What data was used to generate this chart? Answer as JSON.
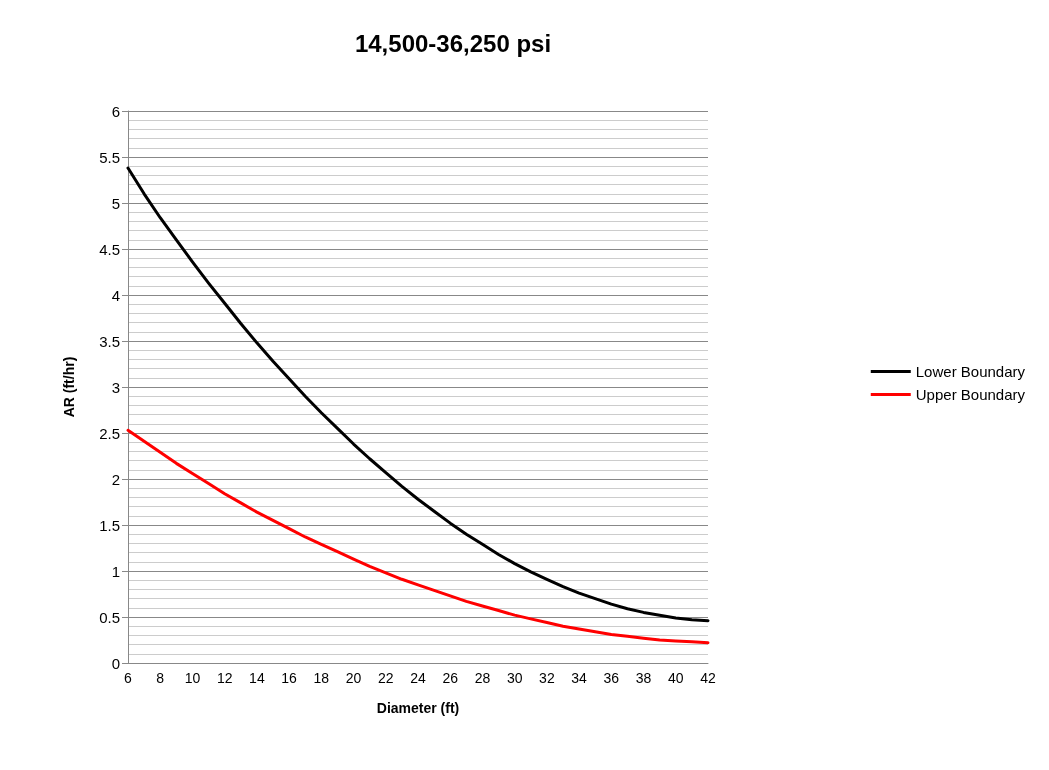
{
  "chart_data": {
    "type": "line",
    "title": "14,500-36,250 psi",
    "xlabel": "Diameter (ft)",
    "ylabel": "AR (ft/hr)",
    "categories": [
      "6",
      null,
      "8",
      null,
      "10",
      null,
      "12",
      null,
      "14",
      null,
      "16",
      null,
      "18",
      null,
      "20",
      null,
      "22",
      null,
      "24",
      null,
      "26",
      null,
      "28",
      null,
      "30",
      null,
      "32",
      null,
      "34",
      null,
      "36",
      null,
      "38",
      null,
      "40",
      null,
      "42"
    ],
    "series": [
      {
        "name": "Lower Boundary",
        "color": "#000000",
        "values": [
          5.38,
          5.1,
          4.84,
          4.6,
          4.36,
          4.13,
          3.91,
          3.69,
          3.48,
          3.28,
          3.09,
          2.9,
          2.72,
          2.55,
          2.38,
          2.22,
          2.07,
          1.92,
          1.78,
          1.65,
          1.52,
          1.4,
          1.29,
          1.18,
          1.08,
          0.99,
          0.91,
          0.83,
          0.76,
          0.7,
          0.64,
          0.59,
          0.55,
          0.52,
          0.49,
          0.47,
          0.46
        ]
      },
      {
        "name": "Upper Boundary",
        "color": "#ff0000",
        "values": [
          2.53,
          2.41,
          2.29,
          2.17,
          2.06,
          1.95,
          1.84,
          1.74,
          1.64,
          1.55,
          1.46,
          1.37,
          1.29,
          1.21,
          1.13,
          1.05,
          0.98,
          0.91,
          0.85,
          0.79,
          0.73,
          0.67,
          0.62,
          0.57,
          0.52,
          0.48,
          0.44,
          0.4,
          0.37,
          0.34,
          0.31,
          0.29,
          0.27,
          0.25,
          0.24,
          0.23,
          0.22
        ]
      }
    ],
    "ylim": [
      0,
      6
    ],
    "yticks": [
      0,
      0.5,
      1,
      1.5,
      2,
      2.5,
      3,
      3.5,
      4,
      4.5,
      5,
      5.5,
      6
    ],
    "grid": "y",
    "legend": "right",
    "marker": "none",
    "line_style": "solid"
  }
}
